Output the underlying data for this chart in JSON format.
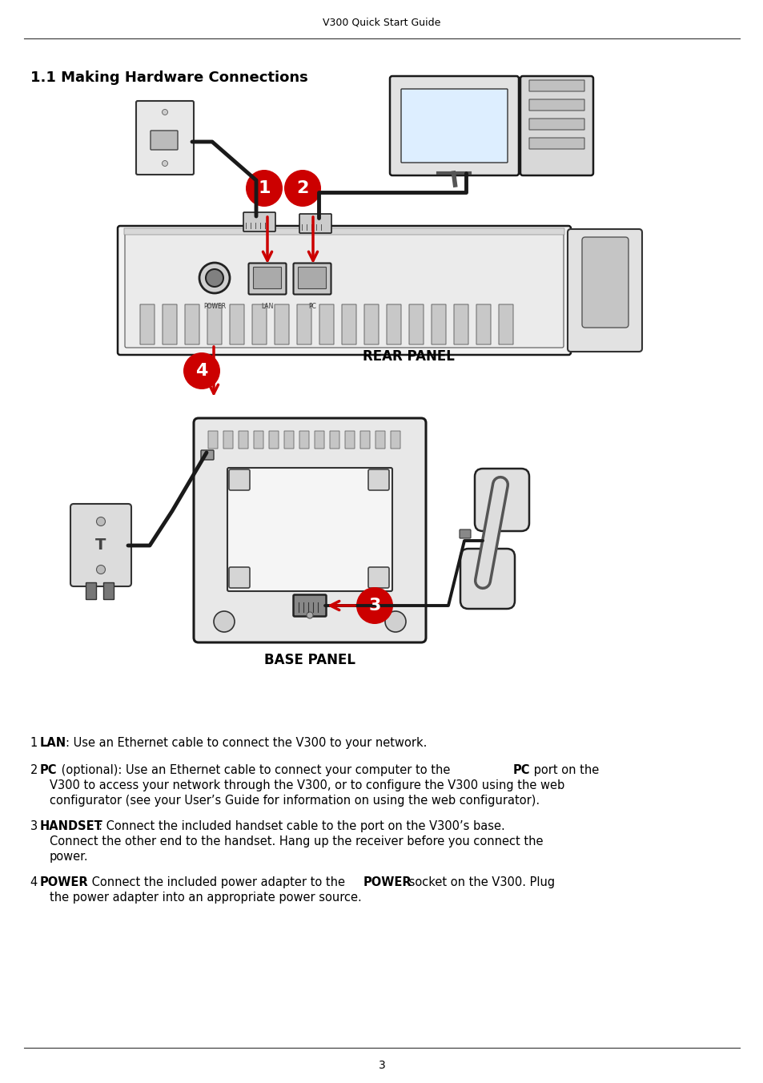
{
  "header_text": "V300 Quick Start Guide",
  "title": "1.1 Making Hardware Connections",
  "rear_panel_label": "REAR PANEL",
  "base_panel_label": "BASE PANEL",
  "page_number": "3",
  "bg_color": "#ffffff",
  "text_color": "#000000",
  "red_color": "#cc0000",
  "header_fontsize": 9,
  "title_fontsize": 13,
  "body_fontsize": 10.5,
  "panel_label_fontsize": 11,
  "item1_bold": "LAN",
  "item1_normal": ": Use an Ethernet cable to connect the V300 to your network.",
  "item2_bold": "PC",
  "item2_normal": " (optional): Use an Ethernet cable to connect your computer to the ",
  "item2_bold2": "PC",
  "item2_normal2": " port on the",
  "item2_line2": "V300 to access your network through the V300, or to configure the V300 using the web",
  "item2_line3": "configurator (see your User’s Guide for information on using the web configurator).",
  "item3_bold": "HANDSET",
  "item3_normal": ": Connect the included handset cable to the port on the V300’s base.",
  "item3_line2": "Connect the other end to the handset. Hang up the receiver before you connect the",
  "item3_line3": "power.",
  "item4_bold": "POWER",
  "item4_normal": ": Connect the included power adapter to the ",
  "item4_bold2": "POWER",
  "item4_normal2": " socket on the V300. Plug",
  "item4_line2": "the power adapter into an appropriate power source."
}
